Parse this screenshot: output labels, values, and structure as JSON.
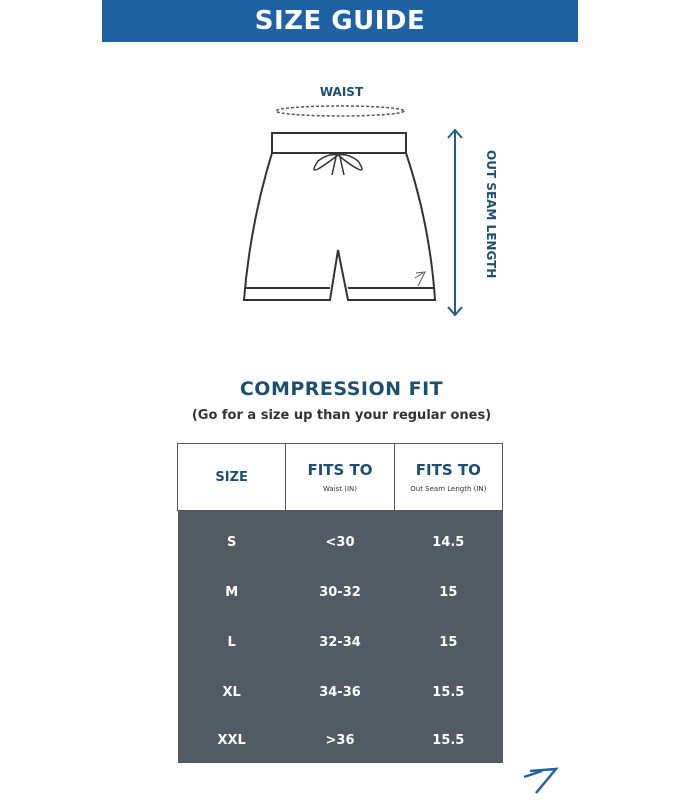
{
  "banner": {
    "title": "SIZE GUIDE"
  },
  "diagram": {
    "waist_label": "WAIST",
    "seam_label": "OUT SEAM LENGTH"
  },
  "fit": {
    "title": "COMPRESSION FIT",
    "note": "(Go for a size up than your regular ones)"
  },
  "table": {
    "headers": [
      {
        "title": "SIZE",
        "sub": ""
      },
      {
        "title": "FITS TO",
        "sub": "Waist (IN)"
      },
      {
        "title": "FITS TO",
        "sub": "Out Seam Length (IN)"
      }
    ],
    "rows": [
      [
        "S",
        "<30",
        "14.5"
      ],
      [
        "M",
        "30-32",
        "15"
      ],
      [
        "L",
        "32-34",
        "15"
      ],
      [
        "XL",
        "34-36",
        "15.5"
      ],
      [
        "XXL",
        ">36",
        "15.5"
      ]
    ]
  },
  "colors": {
    "banner": "#1f62a3",
    "accent_text": "#1f4f6e",
    "table_body": "#525b64"
  },
  "icons": [
    "brand-logo-icon",
    "shorts-illustration",
    "double-arrow-icon"
  ]
}
